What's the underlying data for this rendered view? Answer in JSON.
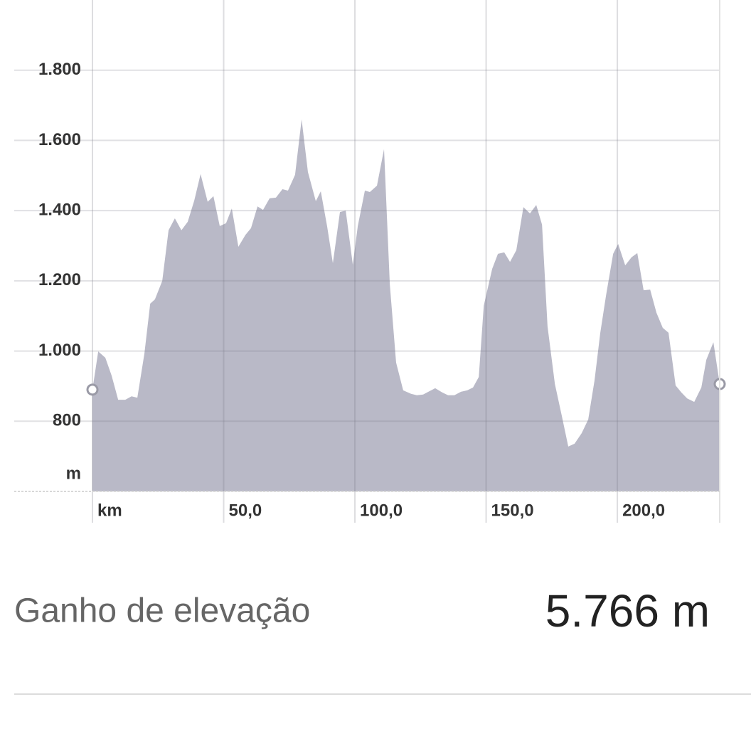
{
  "chart_data": {
    "type": "area",
    "x": [
      0,
      2.2,
      4.9,
      7.3,
      9.8,
      12.5,
      14.9,
      17.1,
      19.8,
      22.0,
      23.8,
      26.6,
      29.0,
      31.4,
      33.9,
      36.3,
      38.8,
      41.2,
      43.9,
      46.1,
      48.5,
      50.9,
      53.1,
      55.6,
      58.3,
      60.4,
      62.9,
      65.0,
      67.5,
      69.9,
      72.4,
      74.5,
      77.2,
      79.7,
      82.1,
      85.1,
      87.0,
      89.4,
      91.6,
      94.3,
      96.5,
      99.2,
      101.1,
      103.8,
      105.7,
      108.4,
      111.1,
      113.3,
      115.7,
      118.4,
      121.4,
      123.6,
      126.0,
      128.5,
      130.6,
      133.3,
      135.5,
      137.9,
      140.4,
      142.8,
      145.0,
      147.2,
      149.1,
      152.3,
      154.5,
      156.9,
      159.1,
      161.5,
      164.2,
      166.7,
      169.1,
      171.3,
      173.4,
      176.2,
      178.9,
      181.3,
      183.7,
      186.4,
      188.9,
      191.3,
      193.5,
      195.7,
      198.4,
      200.3,
      203.0,
      205.4,
      207.6,
      210.0,
      212.5,
      214.9,
      217.3,
      219.5,
      222.2,
      224.4,
      226.6,
      229.3,
      232.0,
      233.9,
      236.6,
      239.0
    ],
    "values": [
      890,
      999,
      981,
      930,
      861,
      861,
      871,
      867,
      993,
      1135,
      1147,
      1200,
      1344,
      1378,
      1344,
      1368,
      1429,
      1504,
      1425,
      1441,
      1356,
      1364,
      1406,
      1297,
      1331,
      1350,
      1412,
      1402,
      1435,
      1437,
      1461,
      1457,
      1502,
      1660,
      1510,
      1427,
      1455,
      1356,
      1250,
      1396,
      1400,
      1246,
      1356,
      1457,
      1453,
      1471,
      1575,
      1190,
      967,
      888,
      878,
      874,
      876,
      886,
      894,
      882,
      874,
      874,
      884,
      888,
      896,
      926,
      1129,
      1234,
      1277,
      1281,
      1254,
      1287,
      1410,
      1392,
      1416,
      1360,
      1070,
      906,
      813,
      728,
      736,
      766,
      805,
      916,
      1052,
      1159,
      1277,
      1305,
      1244,
      1267,
      1279,
      1173,
      1175,
      1109,
      1066,
      1052,
      902,
      882,
      865,
      855,
      896,
      975,
      1025,
      906
    ],
    "color": "#b9b9c7",
    "xlim": [
      0,
      239
    ],
    "ylim": [
      600,
      2000
    ],
    "xticks": [
      {
        "value": 0,
        "label": "km"
      },
      {
        "value": 50,
        "label": "50,0"
      },
      {
        "value": 100,
        "label": "100,0"
      },
      {
        "value": 150,
        "label": "150,0"
      },
      {
        "value": 200,
        "label": "200,0"
      }
    ],
    "yticks": [
      800,
      {
        "value": 1000,
        "label": "1.000"
      },
      {
        "value": 1200,
        "label": "1.200"
      },
      {
        "value": 1400,
        "label": "1.400"
      },
      {
        "value": 1600,
        "label": "1.600"
      },
      {
        "value": 1800,
        "label": "1.800"
      }
    ],
    "y_unit": "m",
    "grid": true
  },
  "summary": {
    "label": "Ganho de elevação",
    "value": "5.766 m"
  }
}
